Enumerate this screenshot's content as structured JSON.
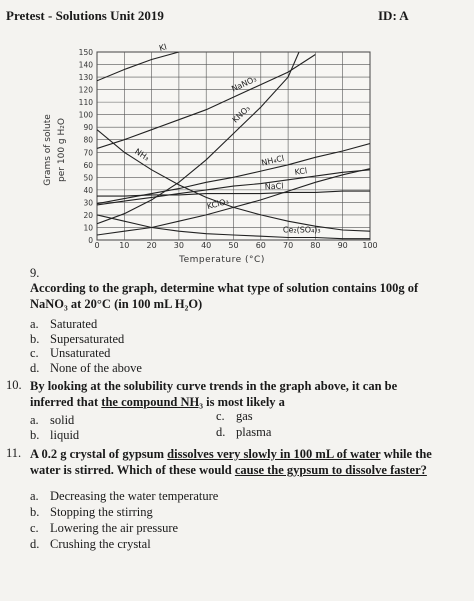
{
  "header": {
    "title": "Pretest - Solutions Unit 2019",
    "id": "ID: A"
  },
  "chart_data": {
    "type": "line",
    "ylabel": [
      "Grams of solute",
      "per 100 g H₂O"
    ],
    "xlabel": "Temperature (°C)",
    "xlim": [
      0,
      100
    ],
    "ylim": [
      0,
      150
    ],
    "xticks": [
      0,
      10,
      20,
      30,
      40,
      50,
      60,
      70,
      80,
      90,
      100
    ],
    "yticks": [
      0,
      10,
      20,
      30,
      40,
      50,
      60,
      70,
      80,
      90,
      100,
      110,
      120,
      130,
      140,
      150
    ],
    "grid": true,
    "color": "#222222",
    "series": [
      {
        "name": "KI",
        "x": [
          0,
          10,
          20,
          30
        ],
        "y": [
          127,
          136,
          144,
          150
        ]
      },
      {
        "name": "NaNO₃",
        "x": [
          0,
          10,
          20,
          30,
          40,
          50,
          60,
          70,
          80
        ],
        "y": [
          73,
          80,
          88,
          96,
          104,
          114,
          124,
          134,
          148
        ]
      },
      {
        "name": "KNO₃",
        "x": [
          0,
          10,
          20,
          30,
          40,
          50,
          60,
          70,
          74
        ],
        "y": [
          13,
          21,
          32,
          46,
          64,
          85,
          106,
          130,
          150
        ]
      },
      {
        "name": "NH₃",
        "x": [
          0,
          10,
          20,
          30,
          40,
          50,
          60,
          70,
          80,
          90,
          100
        ],
        "y": [
          88,
          70,
          56,
          44,
          34,
          26,
          20,
          15,
          11,
          8,
          7
        ]
      },
      {
        "name": "NH₄Cl",
        "x": [
          0,
          10,
          20,
          30,
          40,
          50,
          60,
          70,
          80,
          90,
          100
        ],
        "y": [
          29,
          33,
          37,
          41,
          46,
          50,
          55,
          60,
          66,
          71,
          77
        ]
      },
      {
        "name": "KCl",
        "x": [
          0,
          10,
          20,
          30,
          40,
          50,
          60,
          70,
          80,
          90,
          100
        ],
        "y": [
          28,
          31,
          34,
          37,
          40,
          43,
          45,
          48,
          51,
          54,
          56
        ]
      },
      {
        "name": "NaCl",
        "x": [
          0,
          10,
          20,
          30,
          40,
          50,
          60,
          70,
          80,
          90,
          100
        ],
        "y": [
          35,
          35,
          36,
          36,
          37,
          37,
          37,
          38,
          38,
          39,
          39
        ]
      },
      {
        "name": "KClO₃",
        "x": [
          0,
          10,
          20,
          30,
          40,
          50,
          60,
          70,
          80,
          90,
          100
        ],
        "y": [
          4,
          7,
          10,
          15,
          20,
          26,
          32,
          39,
          46,
          52,
          57
        ]
      },
      {
        "name": "Ce₂(SO₄)₃",
        "x": [
          0,
          10,
          20,
          30,
          40,
          50,
          60,
          70,
          80,
          90,
          100
        ],
        "y": [
          20,
          15,
          10,
          7,
          5,
          4,
          3,
          2,
          2,
          1,
          1
        ]
      }
    ]
  },
  "questions": [
    {
      "number": "9.",
      "parts": [
        {
          "text": "According to the graph, determine what type of solution contains 100g of NaNO₃ at 20°C (in 100 mL H₂O)"
        }
      ],
      "options": [
        {
          "letter": "a.",
          "text": "Saturated"
        },
        {
          "letter": "b.",
          "text": "Supersaturated"
        },
        {
          "letter": "c.",
          "text": "Unsaturated"
        },
        {
          "letter": "d.",
          "text": "None of the above"
        }
      ]
    },
    {
      "number": "10.",
      "parts": [
        {
          "text": "By looking at the solubility curve trends in the graph above,  it can be inferred that "
        },
        {
          "text": "the compound NH₃",
          "underline": true
        },
        {
          "text": " is most likely a"
        }
      ],
      "options": [
        {
          "letter": "a.",
          "text": "solid"
        },
        {
          "letter": "c.",
          "text": "gas"
        },
        {
          "letter": "b.",
          "text": "liquid"
        },
        {
          "letter": "d.",
          "text": "plasma"
        }
      ]
    },
    {
      "number": "11.",
      "parts": [
        {
          "text": "A 0.2 g crystal of gypsum "
        },
        {
          "text": "dissolves very slowly in 100 mL of water",
          "underline": true
        },
        {
          "text": " while the water is stirred. Which of these would "
        },
        {
          "text": "cause the gypsum to dissolve faster?",
          "underline": true
        }
      ],
      "options": [
        {
          "letter": "a.",
          "text": "Decreasing the water temperature"
        },
        {
          "letter": "b.",
          "text": "Stopping the stirring"
        },
        {
          "letter": "c.",
          "text": "Lowering the air pressure"
        },
        {
          "letter": "d.",
          "text": "Crushing the crystal"
        }
      ]
    }
  ]
}
